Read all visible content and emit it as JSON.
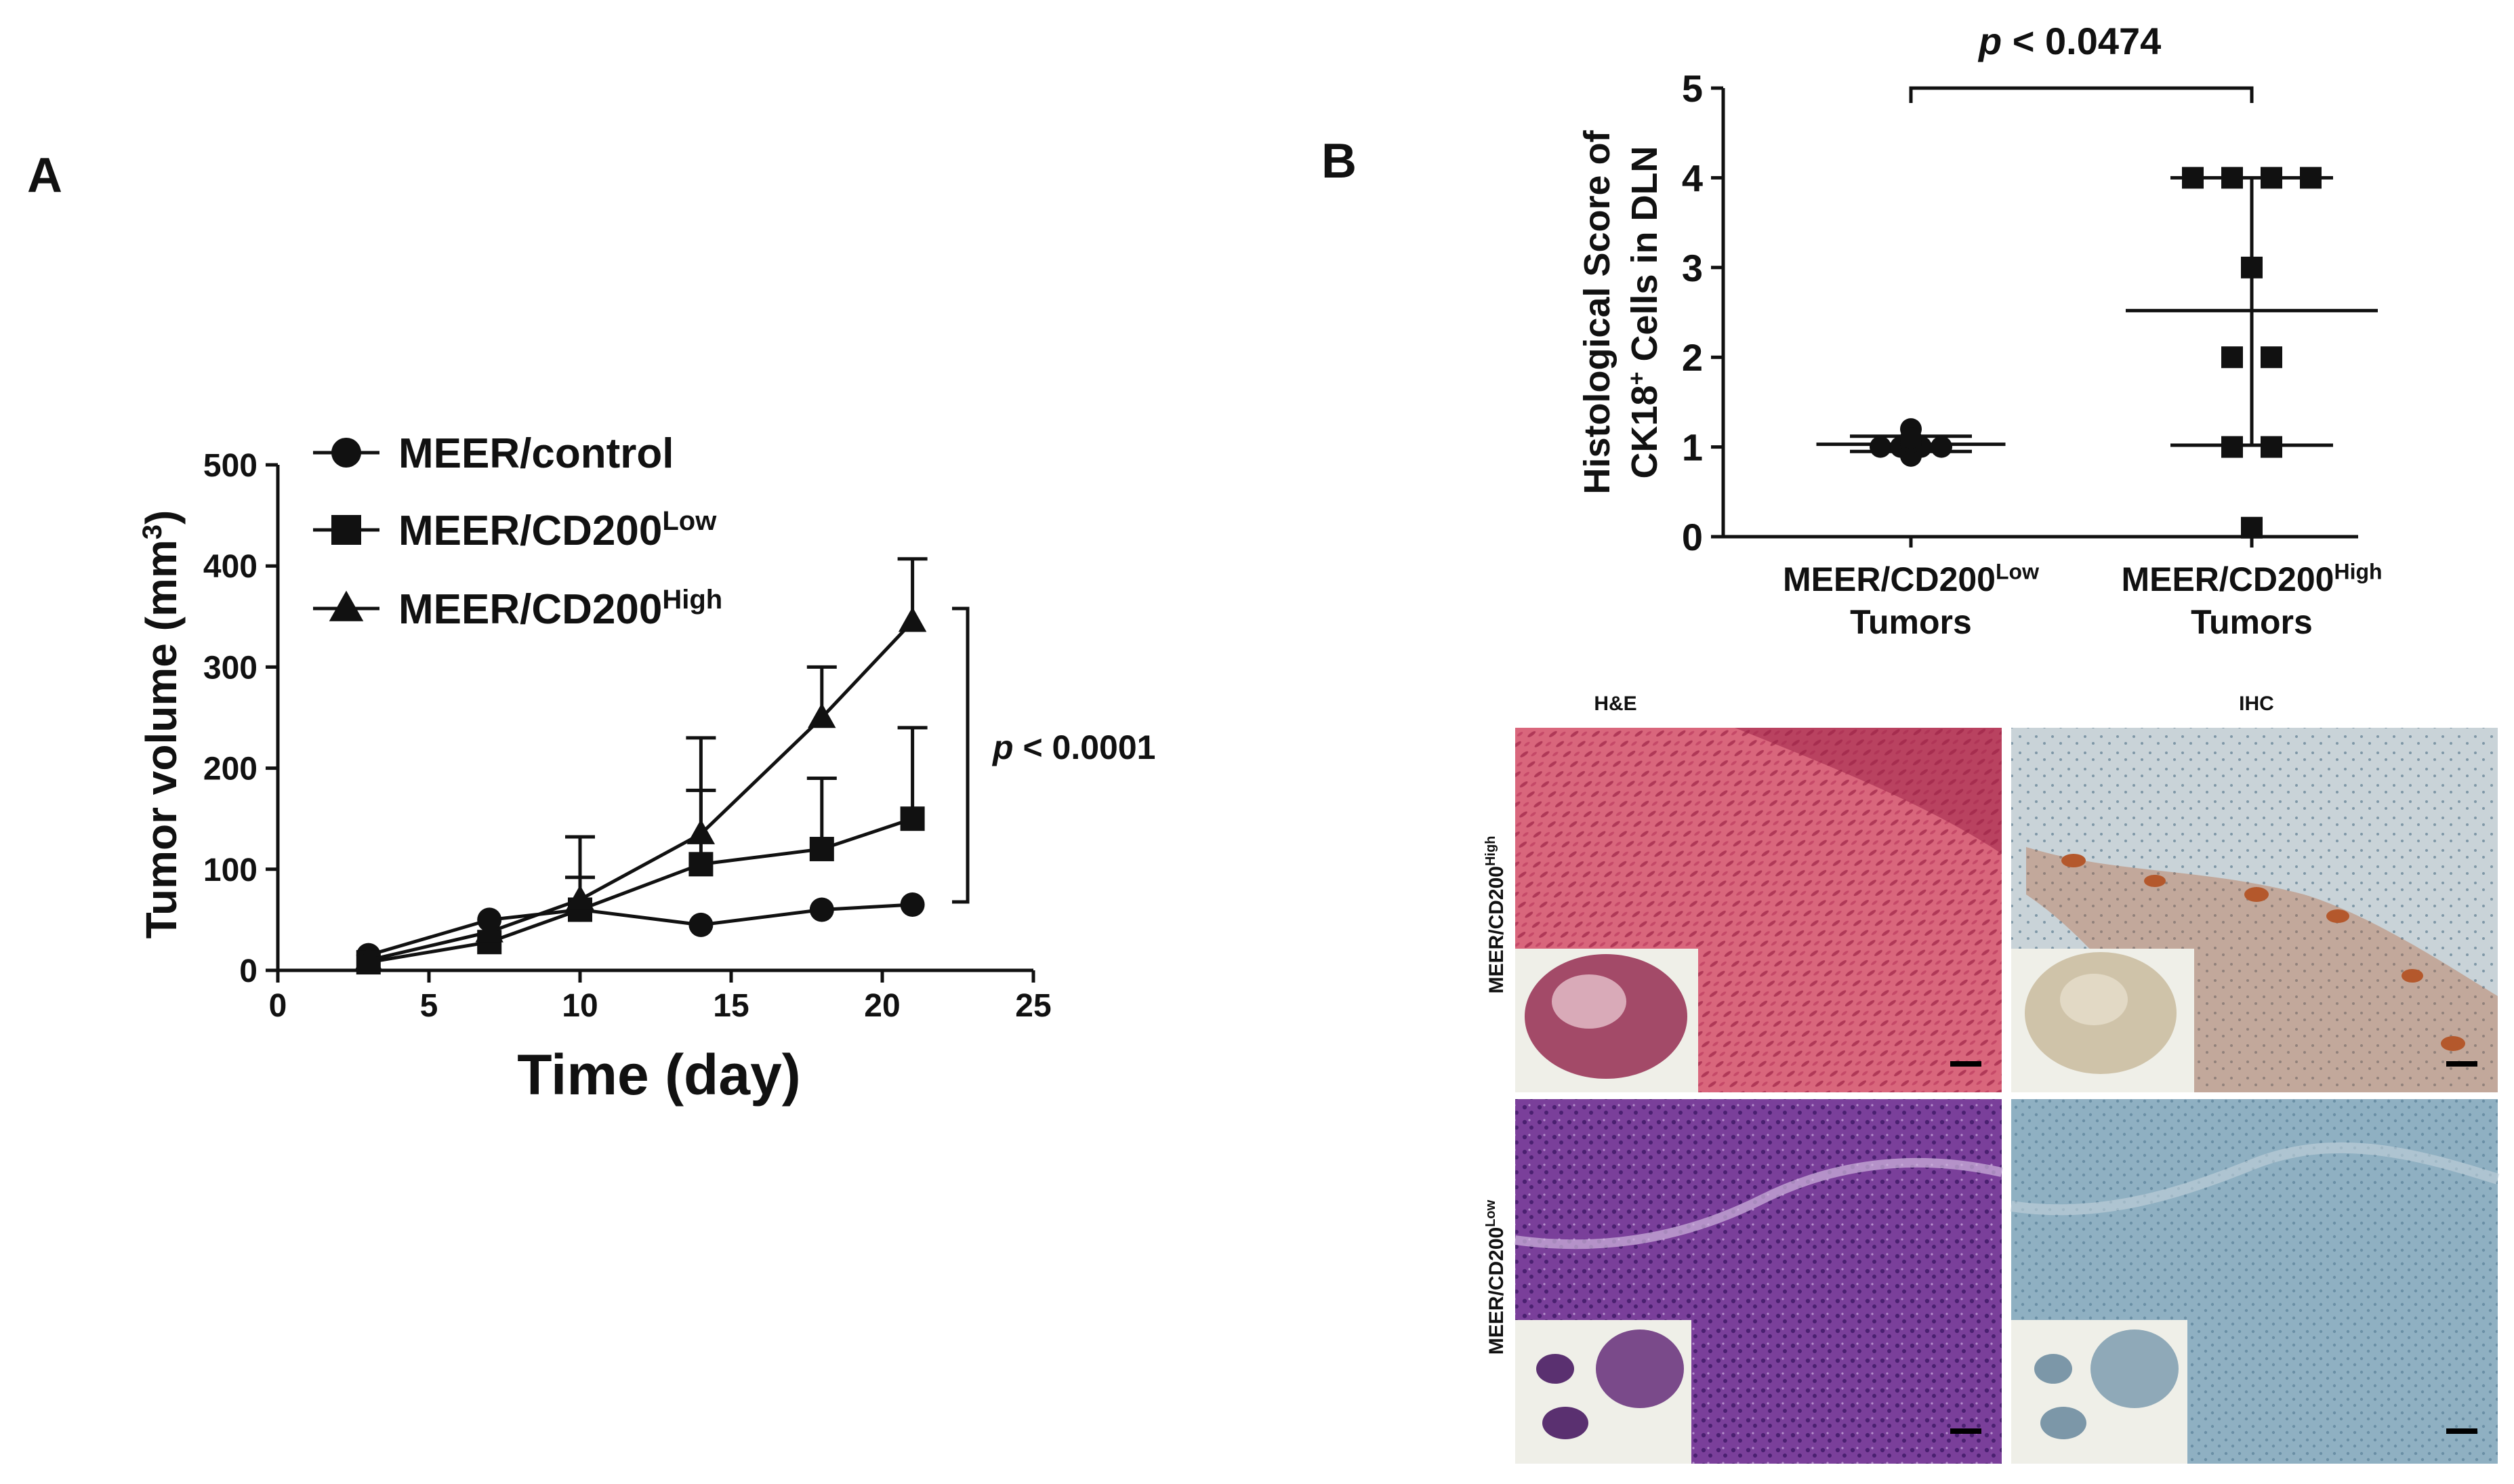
{
  "panel_a": {
    "label": "A",
    "annotation_p": "p",
    "annotation_text": " < 0.0001"
  },
  "panel_b": {
    "label": "B",
    "annotation_p": "p",
    "annotation_text": " < 0.0474",
    "micrographs": {
      "col_headers": [
        "H&E",
        "IHC"
      ],
      "row_labels": [
        {
          "base": "MEER/CD200",
          "sup": "High"
        },
        {
          "base": "MEER/CD200",
          "sup": "Low"
        }
      ]
    }
  },
  "colors": {
    "ink": "#111111",
    "he_high_bg": "#d9667c",
    "he_high_dark": "#9e2548",
    "ihc_high_bg": "#c9d3d8",
    "ihc_high_stain": "#b4582c",
    "he_low_bg": "#7a3f9a",
    "he_low_dark": "#4a2070",
    "ihc_low_bg": "#8fb0c2",
    "inset_bg": "#efefe8"
  },
  "chart_data": [
    {
      "type": "line",
      "xlabel": "Time (day)",
      "ylabel": "Tumor volume (mm",
      "ylabel_sup": "3",
      "ylabel_end": ")",
      "xlim": [
        0,
        25
      ],
      "ylim": [
        0,
        500
      ],
      "xticks": [
        "0",
        "5",
        "10",
        "15",
        "20",
        "25"
      ],
      "yticks": [
        "0",
        "100",
        "200",
        "300",
        "400",
        "500"
      ],
      "grid": false,
      "legend_placement": "top-left",
      "x": [
        3,
        7,
        10,
        14,
        18,
        21
      ],
      "series": [
        {
          "name": "MEER/control",
          "name_base": "MEER/control",
          "name_sup": "",
          "marker": "circle",
          "values": [
            15,
            50,
            60,
            45,
            60,
            65
          ],
          "err": [
            0,
            0,
            0,
            0,
            0,
            0
          ]
        },
        {
          "name": "MEER/CD200Low",
          "name_base": "MEER/CD200",
          "name_sup": "Low",
          "marker": "square",
          "values": [
            8,
            28,
            60,
            105,
            120,
            150
          ],
          "err": [
            0,
            0,
            32,
            73,
            70,
            90
          ]
        },
        {
          "name": "MEER/CD200High",
          "name_base": "MEER/CD200",
          "name_sup": "High",
          "marker": "triangle",
          "values": [
            10,
            38,
            70,
            135,
            250,
            345
          ],
          "err": [
            0,
            0,
            62,
            95,
            50,
            62
          ]
        }
      ]
    },
    {
      "type": "scatter",
      "ylabel_line1": "Histological Score of",
      "ylabel_line2_base": "CK18",
      "ylabel_line2_sup": "+",
      "ylabel_line2_end": " Cells in DLN",
      "ylim": [
        0,
        5
      ],
      "yticks": [
        "0",
        "1",
        "2",
        "3",
        "4",
        "5"
      ],
      "grid": false,
      "groups": [
        {
          "name": "MEER/CD200Low Tumors",
          "label_base": "MEER/CD200",
          "label_sup": "Low",
          "label_line2": "Tumors",
          "marker": "circle",
          "values": [
            1,
            1,
            1,
            1,
            1.2,
            0.9,
            1.05,
            1.1
          ],
          "mean": 1.03,
          "range": [
            0.95,
            1.12
          ]
        },
        {
          "name": "MEER/CD200High Tumors",
          "label_base": "MEER/CD200",
          "label_sup": "High",
          "label_line2": "Tumors",
          "marker": "square",
          "values": [
            4,
            4,
            4,
            4,
            3,
            2,
            2,
            1,
            1,
            0.1
          ],
          "mean": 2.52,
          "range": [
            1.02,
            4.0
          ]
        }
      ]
    }
  ]
}
